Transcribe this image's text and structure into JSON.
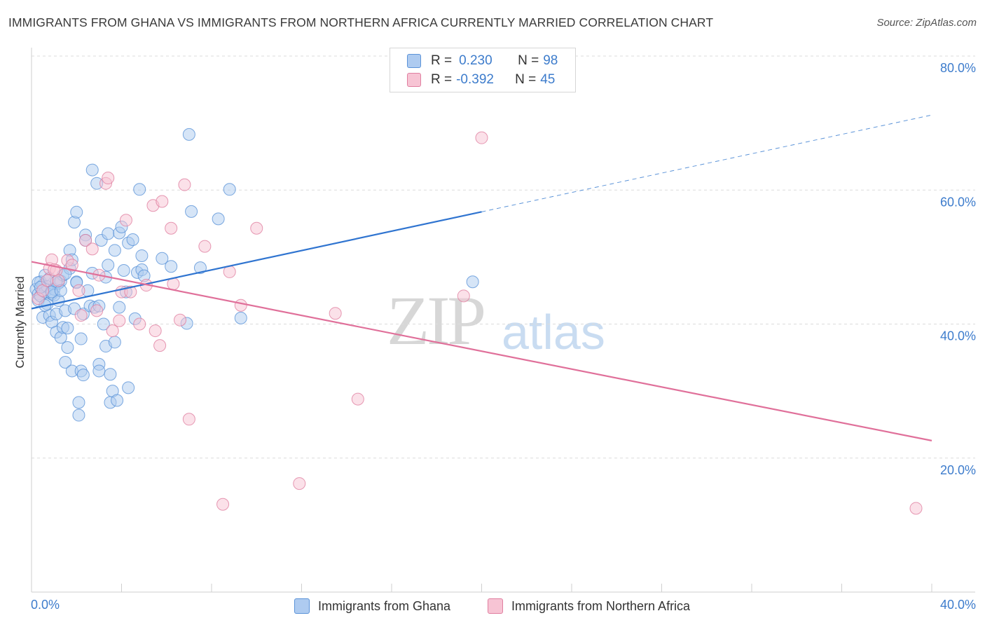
{
  "title": "IMMIGRANTS FROM GHANA VS IMMIGRANTS FROM NORTHERN AFRICA CURRENTLY MARRIED CORRELATION CHART",
  "source": "Source: ZipAtlas.com",
  "watermark": {
    "zip": "ZIP",
    "atlas": "atlas"
  },
  "legend_stats": [
    {
      "r_key": "R =",
      "r_val": "0.230",
      "n_key": "N =",
      "n_val": "98",
      "color": "#aecbf0",
      "border": "#5b93d8"
    },
    {
      "r_key": "R =",
      "r_val": "-0.392",
      "n_key": "N =",
      "n_val": "45",
      "color": "#f7c4d4",
      "border": "#e07fa0"
    }
  ],
  "legend_series": [
    {
      "label": "Immigrants from Ghana",
      "color": "#aecbf0",
      "border": "#5b93d8"
    },
    {
      "label": "Immigrants from Northern Africa",
      "color": "#f7c4d4",
      "border": "#e07fa0"
    }
  ],
  "chart_data": {
    "type": "scatter",
    "title": "IMMIGRANTS FROM GHANA VS IMMIGRANTS FROM NORTHERN AFRICA CURRENTLY MARRIED CORRELATION CHART",
    "xlabel": "",
    "ylabel": "Currently Married",
    "xlim": [
      0,
      40
    ],
    "ylim": [
      0,
      80
    ],
    "x_tick_labels": [
      "0.0%",
      "40.0%"
    ],
    "y_ticks": [
      20,
      40,
      60,
      80
    ],
    "y_tick_labels": [
      "20.0%",
      "40.0%",
      "60.0%",
      "80.0%"
    ],
    "grid": true,
    "series": [
      {
        "name": "Immigrants from Ghana",
        "color": "#5b93d8",
        "fill": "#aecbf0",
        "trend": {
          "x": [
            0,
            20,
            40
          ],
          "y": [
            42.3,
            56.8,
            71.2
          ],
          "solid_until": 20
        },
        "points": [
          [
            0.2,
            45.2
          ],
          [
            0.3,
            44.5
          ],
          [
            0.3,
            43.5
          ],
          [
            0.4,
            46.3
          ],
          [
            0.4,
            44.2
          ],
          [
            0.5,
            41.0
          ],
          [
            0.5,
            45.8
          ],
          [
            0.6,
            47.3
          ],
          [
            0.6,
            44.8
          ],
          [
            0.7,
            45.6
          ],
          [
            0.7,
            43.0
          ],
          [
            0.8,
            46.8
          ],
          [
            0.8,
            41.3
          ],
          [
            0.9,
            40.3
          ],
          [
            0.9,
            44.5
          ],
          [
            1.0,
            45.2
          ],
          [
            1.0,
            44.3
          ],
          [
            1.1,
            41.5
          ],
          [
            1.1,
            38.8
          ],
          [
            1.2,
            46.1
          ],
          [
            1.2,
            43.5
          ],
          [
            1.3,
            46.4
          ],
          [
            1.3,
            38.0
          ],
          [
            1.4,
            39.5
          ],
          [
            1.4,
            47.3
          ],
          [
            1.5,
            34.3
          ],
          [
            1.5,
            42.0
          ],
          [
            1.6,
            39.4
          ],
          [
            1.6,
            36.5
          ],
          [
            1.7,
            48.3
          ],
          [
            1.7,
            51.0
          ],
          [
            1.8,
            49.6
          ],
          [
            1.8,
            33.0
          ],
          [
            1.9,
            55.2
          ],
          [
            1.9,
            42.3
          ],
          [
            2.0,
            56.7
          ],
          [
            2.0,
            46.3
          ],
          [
            2.1,
            28.3
          ],
          [
            2.1,
            26.4
          ],
          [
            2.2,
            37.8
          ],
          [
            2.2,
            33.0
          ],
          [
            2.3,
            41.5
          ],
          [
            2.3,
            32.4
          ],
          [
            2.4,
            53.3
          ],
          [
            2.4,
            52.5
          ],
          [
            2.5,
            45.0
          ],
          [
            2.6,
            42.7
          ],
          [
            2.7,
            47.6
          ],
          [
            2.7,
            63.0
          ],
          [
            2.8,
            42.5
          ],
          [
            2.9,
            61.0
          ],
          [
            3.0,
            42.7
          ],
          [
            3.0,
            34.0
          ],
          [
            3.0,
            33.0
          ],
          [
            3.1,
            52.5
          ],
          [
            3.2,
            40.0
          ],
          [
            3.3,
            47.0
          ],
          [
            3.3,
            36.7
          ],
          [
            3.4,
            53.5
          ],
          [
            3.4,
            48.8
          ],
          [
            3.5,
            32.5
          ],
          [
            3.5,
            28.3
          ],
          [
            3.6,
            30.0
          ],
          [
            3.7,
            37.3
          ],
          [
            3.7,
            51.0
          ],
          [
            3.8,
            28.6
          ],
          [
            3.9,
            53.6
          ],
          [
            3.9,
            42.5
          ],
          [
            4.0,
            54.5
          ],
          [
            4.1,
            48.0
          ],
          [
            4.2,
            44.8
          ],
          [
            4.3,
            52.1
          ],
          [
            4.3,
            30.5
          ],
          [
            4.5,
            52.6
          ],
          [
            4.6,
            40.8
          ],
          [
            4.7,
            47.7
          ],
          [
            4.8,
            60.1
          ],
          [
            4.9,
            48.1
          ],
          [
            4.9,
            50.2
          ],
          [
            5.0,
            47.2
          ],
          [
            5.8,
            49.8
          ],
          [
            6.2,
            48.6
          ],
          [
            6.9,
            40.1
          ],
          [
            7.0,
            68.3
          ],
          [
            7.1,
            56.8
          ],
          [
            7.5,
            48.4
          ],
          [
            8.3,
            55.7
          ],
          [
            8.8,
            60.1
          ],
          [
            9.3,
            40.9
          ],
          [
            19.6,
            46.3
          ],
          [
            1.1,
            46.3
          ],
          [
            0.9,
            44.8
          ],
          [
            1.5,
            47.5
          ],
          [
            2.0,
            46.2
          ],
          [
            0.3,
            46.2
          ],
          [
            0.6,
            42.8
          ],
          [
            1.3,
            45.0
          ],
          [
            0.4,
            45.5
          ]
        ]
      },
      {
        "name": "Immigrants from Northern Africa",
        "color": "#e07fa0",
        "fill": "#f7c4d4",
        "trend": {
          "x": [
            0,
            40
          ],
          "y": [
            49.3,
            22.6
          ],
          "solid_until": 40
        },
        "points": [
          [
            0.3,
            43.8
          ],
          [
            0.5,
            45.0
          ],
          [
            0.7,
            46.5
          ],
          [
            0.8,
            48.3
          ],
          [
            0.9,
            49.6
          ],
          [
            1.1,
            48.0
          ],
          [
            1.2,
            46.5
          ],
          [
            1.6,
            49.5
          ],
          [
            1.8,
            48.8
          ],
          [
            2.1,
            45.0
          ],
          [
            2.2,
            41.3
          ],
          [
            2.4,
            52.5
          ],
          [
            2.7,
            51.2
          ],
          [
            2.9,
            42.0
          ],
          [
            3.0,
            47.3
          ],
          [
            3.3,
            61.0
          ],
          [
            3.4,
            61.8
          ],
          [
            3.6,
            39.0
          ],
          [
            3.9,
            40.5
          ],
          [
            4.0,
            44.8
          ],
          [
            4.2,
            55.5
          ],
          [
            4.4,
            44.8
          ],
          [
            4.8,
            40.0
          ],
          [
            5.1,
            45.8
          ],
          [
            5.4,
            57.7
          ],
          [
            5.5,
            39.0
          ],
          [
            5.7,
            36.8
          ],
          [
            5.8,
            58.3
          ],
          [
            6.2,
            54.3
          ],
          [
            6.3,
            46.0
          ],
          [
            6.6,
            40.6
          ],
          [
            6.8,
            60.8
          ],
          [
            7.0,
            25.8
          ],
          [
            7.7,
            51.6
          ],
          [
            8.5,
            13.1
          ],
          [
            8.8,
            47.8
          ],
          [
            9.3,
            42.8
          ],
          [
            10.0,
            54.3
          ],
          [
            11.9,
            16.2
          ],
          [
            13.5,
            41.6
          ],
          [
            14.5,
            28.8
          ],
          [
            19.2,
            44.2
          ],
          [
            20.0,
            67.8
          ],
          [
            39.3,
            12.5
          ],
          [
            1.0,
            48.1
          ]
        ]
      }
    ]
  }
}
